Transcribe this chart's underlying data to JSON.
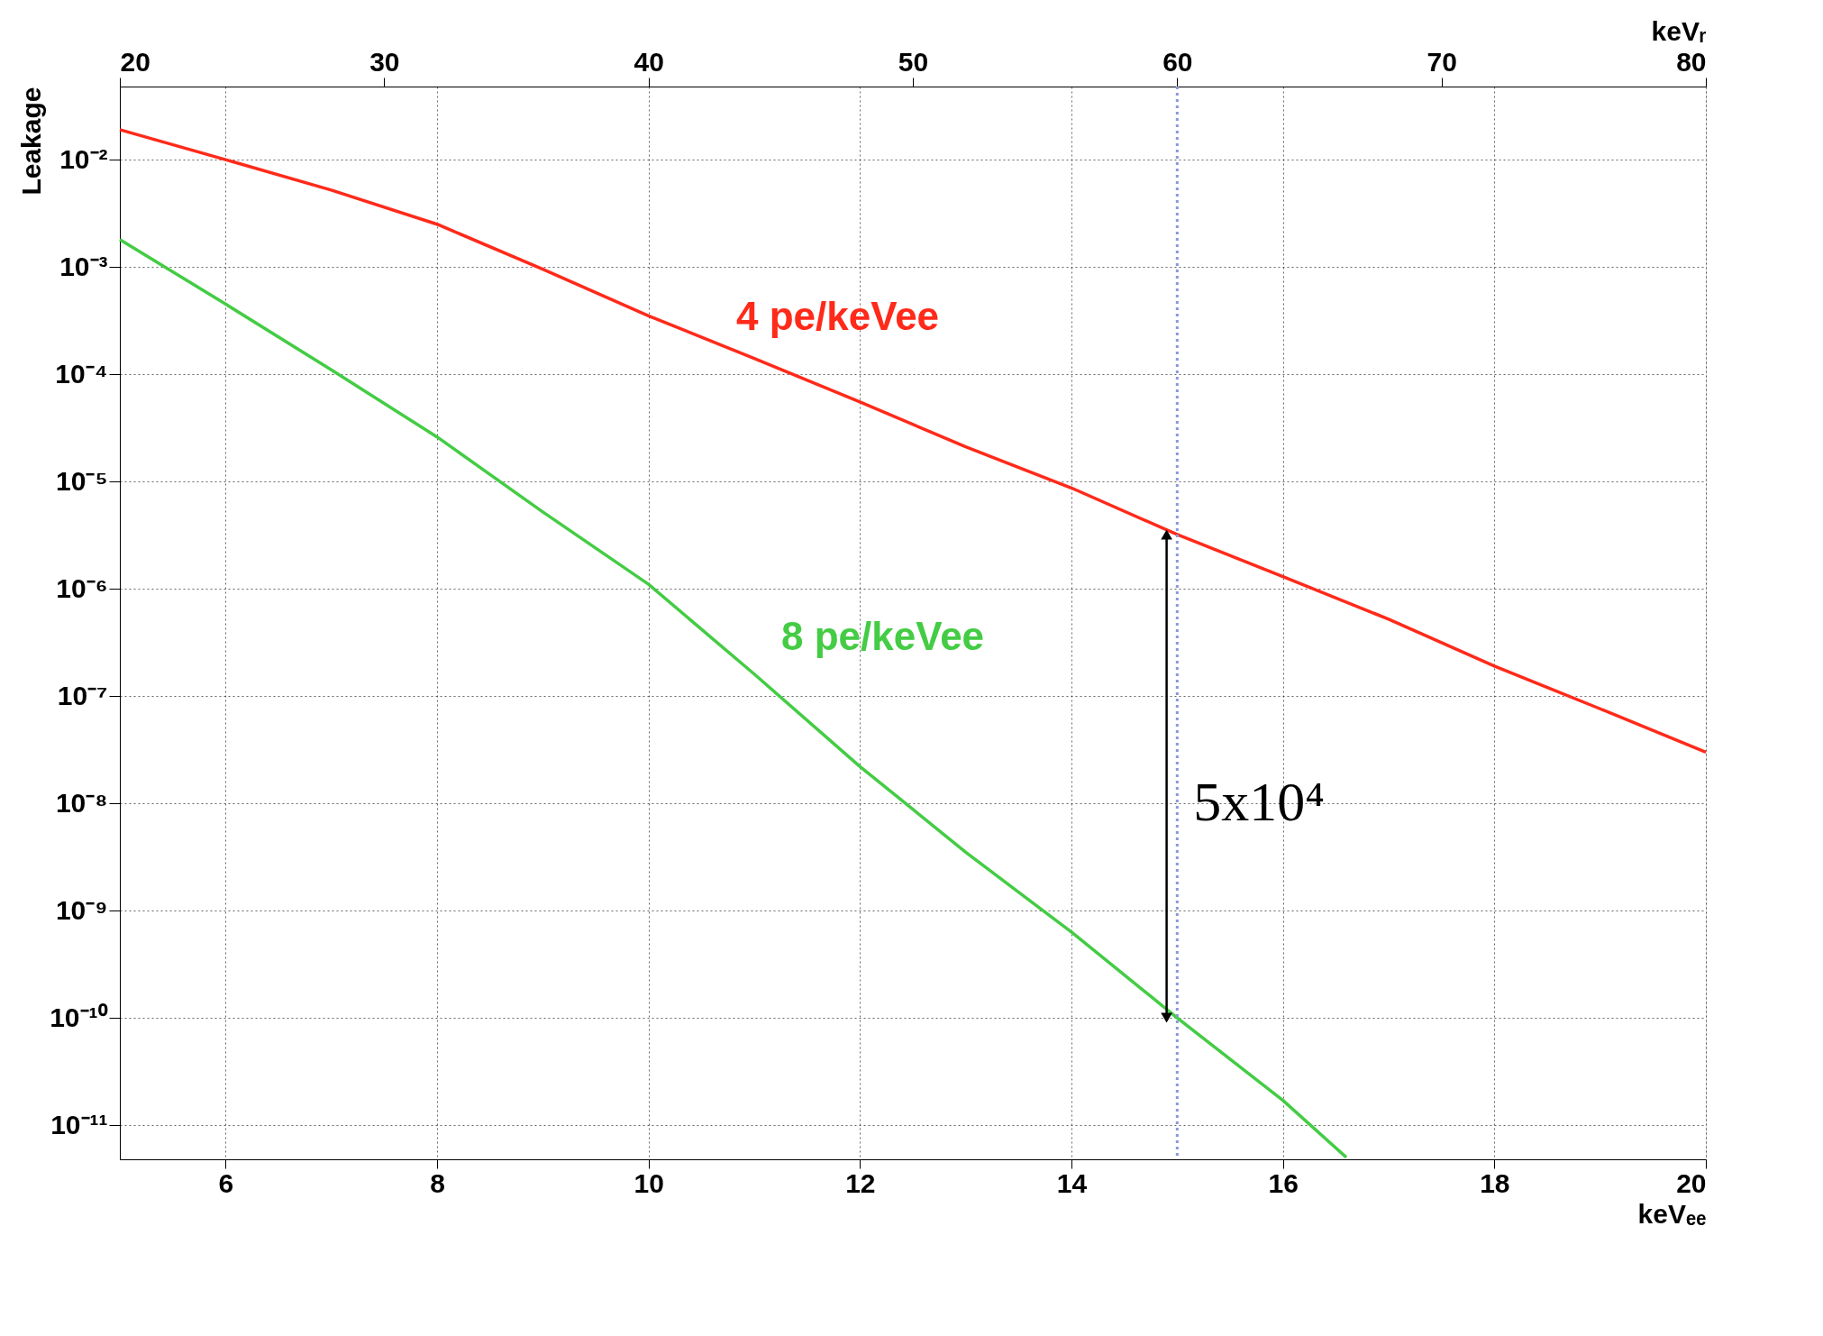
{
  "chart_data": {
    "type": "line",
    "xlabel": "keVₑₑ",
    "x2label": "keVᵣ",
    "ylabel": "Leakage",
    "x": [
      5,
      6,
      7,
      8,
      9,
      10,
      11,
      12,
      13,
      14,
      15,
      16,
      17,
      18,
      19,
      20
    ],
    "series": [
      {
        "name": "4 pe/keVee",
        "color": "#ff2a1a",
        "values": [
          0.019,
          0.01,
          0.0052,
          0.0025,
          0.00095,
          0.00035,
          0.00014,
          5.5e-05,
          2.1e-05,
          8.7e-06,
          3.2e-06,
          1.3e-06,
          5.2e-07,
          1.9e-07,
          7.6e-08,
          3e-08
        ]
      },
      {
        "name": "8 pe/keVee",
        "color": "#44cc44",
        "x": [
          5,
          6,
          7,
          8,
          9,
          10,
          11,
          12,
          13,
          14,
          15,
          16,
          16.6
        ],
        "values": [
          0.0018,
          0.00045,
          0.00011,
          2.6e-05,
          5.2e-06,
          1.1e-06,
          1.6e-07,
          2.2e-08,
          3.5e-09,
          6.3e-10,
          1e-10,
          1.7e-11,
          5e-12
        ]
      }
    ],
    "log": "y",
    "xlim": [
      5,
      20
    ],
    "xticks": [
      6,
      8,
      10,
      12,
      14,
      16,
      18,
      20
    ],
    "x2lim": [
      20,
      80
    ],
    "x2ticks": [
      20,
      30,
      40,
      50,
      60,
      70,
      80
    ],
    "ylim": [
      4.8e-12,
      0.048
    ],
    "yticks": [
      {
        "value": 0.01,
        "label": "10⁻²"
      },
      {
        "value": 0.001,
        "label": "10⁻³"
      },
      {
        "value": 0.0001,
        "label": "10⁻⁴"
      },
      {
        "value": 1e-05,
        "label": "10⁻⁵"
      },
      {
        "value": 1e-06,
        "label": "10⁻⁶"
      },
      {
        "value": 1e-07,
        "label": "10⁻⁷"
      },
      {
        "value": 1e-08,
        "label": "10⁻⁸"
      },
      {
        "value": 1e-09,
        "label": "10⁻⁹"
      },
      {
        "value": 1e-10,
        "label": "10⁻¹⁰"
      },
      {
        "value": 1e-11,
        "label": "10⁻¹¹"
      }
    ],
    "ref_lines": [
      {
        "axis": "x",
        "value": 15,
        "color": "#8899dd",
        "line_style": "dotted"
      }
    ],
    "annotations": [
      {
        "text": "5x10⁴",
        "x": 15,
        "y": 1e-08
      }
    ],
    "grid": true,
    "marker": "none",
    "line_style": "solid"
  }
}
